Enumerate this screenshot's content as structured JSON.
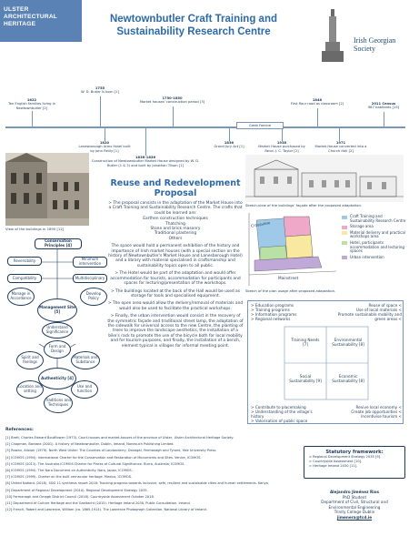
{
  "logo": {
    "lines": [
      "ULSTER",
      "ARCHITECTURAL",
      "HERITAGE"
    ]
  },
  "title": "Newtownbutler Craft Training and Sustainability Research Centre",
  "igs_logo": "Irish Georgian Society",
  "timeline": {
    "above": [
      {
        "year": "1622",
        "text": "Ten English families living in Newtownbutler [2]"
      },
      {
        "year": "1755",
        "text": "W. D. Butler is born [1]"
      },
      {
        "year": "1750-1850",
        "text": "Market houses' construction period [3]"
      },
      {
        "year": "1848",
        "text": "First flour road as classroom [2]"
      },
      {
        "year": "2011 Census",
        "text": "987 habitants [15]"
      }
    ],
    "below": [
      {
        "year": "1820",
        "text": "Lanesborough Arms Hotel built by John Reilly [1]"
      },
      {
        "year": "1836-1836",
        "text": "Construction of Newtownbutler Market House designed by W. D. Butler (1 & 3) and built by Jonathan Tilson [1]"
      },
      {
        "year": "1836",
        "text": "Grand Jury Act [1]"
      },
      {
        "year": "1938",
        "text": "Market House purchased by Revd. J. C. Taylor [2]"
      },
      {
        "year": "1971",
        "text": "Market House converted into a Church Hall [2]"
      }
    ],
    "famine": "Great Famine"
  },
  "reuse": {
    "title": "Reuse and Redevelopment Proposal",
    "intro": "> The proposal consists in the adaptation of the Market House into a Craft Training and Sustainability Research Centre. The crafts that could be learned are:",
    "crafts": [
      "Earthen construction techniques",
      "Thatching",
      "Stone and brick masonry",
      "Traditional plastering",
      "Others"
    ],
    "p2": "The space would hold a permanent exhibition of the history and importance of Irish market houses (with a special section on the history of Newtownbutler's Market House and Lanesborough Hotel) and a library with material specialised in craftsmanship and sustainability topics open to all public.",
    "p3": "> The Hotel would be part of the adaptation and would offer accommodation for tourists, accommodation for participants and spaces for lecturing/presentation of the workshops.",
    "p4": "> The buildings located at the back of the Hall would be used as storage for tools and specialised equipment.",
    "p5": "> The open area would allow the delivery/removal of materials and would also be used to facilitate the practical workshops.",
    "p6": "> Finally, the urban intervention would consist in the recovery of the symmetric façade and traditional street lamp, the adaptation of the sidewalk for universal access to the new Centre, the planting of trees to improve the landscape aesthetics, the installation of a bike's rack to promote the use of the bicycle both for local mobility and for tourism purposes, and finally, the installation of a bench, element typical in villages for informal meeting point."
  },
  "photo_caption": "View of the buildings in 1890 [12]",
  "sketch_caption": "Sketch-view of the buildings' façade after the proposed adaptation.",
  "plan_caption": "Sketch of the plan usage after proposed adaptation.",
  "plan_labels": {
    "street1": "Crossview",
    "street2": "Mainstreet"
  },
  "legend": [
    {
      "label": "Craft Training and Sustainability Research Centre",
      "color": "#9ec9e8"
    },
    {
      "label": "Storage area",
      "color": "#f0a8c8"
    },
    {
      "label": "Material delivery and practical workshops area",
      "color": "#f8e8a0"
    },
    {
      "label": "Hotel, participants accommodation and lecturing spaces",
      "color": "#b9e0a5"
    },
    {
      "label": "Urban intervention",
      "color": "#c0a8d8"
    }
  ],
  "diagram": {
    "conservation": "Conservation Principles [4]",
    "reversibility": "Reversibility",
    "minimum": "Minimum intervention",
    "compatibility": "Compatibility",
    "multidisciplinary": "Multidisciplinary",
    "manage": "Manage in Accordance",
    "develop": "Develop Policy",
    "management": "Management Site [5]",
    "understand": "Understand Significance",
    "form": "Form and Design",
    "spirit": "Spirit and feelings",
    "materials": "Materials and Substance",
    "authenticity": "Authenticity [4]",
    "location": "Location and setting",
    "use": "Use and function",
    "traditions": "Traditions and Techniques"
  },
  "sustainability": {
    "tl": [
      "> Education programs",
      "> Training programs",
      "> Information programs",
      "> Regional networks"
    ],
    "tr": [
      "Reuse of space <",
      "Use of local materials <",
      "Promote sustainable mobility and green areas <"
    ],
    "training": "Training Needs [7]",
    "env": "Environmental Sustainability [8]",
    "social": "Social Sustainability [9]",
    "econ": "Economic Sustainability [8]",
    "bl": [
      "> Contribute to placemaking",
      "> Understanding of the village's history",
      "> Valorisation of public space"
    ],
    "br": [
      "Revive local economy <",
      "Create job opportunities <",
      "Incentivise tourism <"
    ]
  },
  "references": {
    "title": "References:",
    "items": [
      "[1] Brett, Charles Edward Boutflower (1973). Court-houses and market-houses of the province of Ulster, Ulster Architectural Heritage Society.",
      "[2] Chapman, Barbara (2001). A history of Newtownbutler. Dublin, Ireland, Nonesuch Publishing Limited.",
      "[3] Rowan, Alistair (1979). North West Ulster: The Counties of Londonderry, Donegal, Fermanagh and Tyrone, Yale University Press.",
      "[4] ICOMOS (1994). International Charter for the Conservation and Restoration of Monuments and Sites. Venice, ICOMOS.",
      "[5] ICOMOS (2013). The Australia ICOMOS Charter for Places of Cultural Significance. Burra, Australia, ICOMOS.",
      "[6] ICOMOS (1994). The Nara Document on Authenticity. Nara, Japan, ICOMOS.",
      "[7] ICOMOS (1999). Charter on the built vernacular heritage. Mexico, ICOMOS.",
      "[8] United Nations (2018). SDG 11 synthesis report 2018: Tracking progress towards inclusive, safe, resilient and sustainable cities and human settlements. Kenya.",
      "[9] Department of Regional Development (2010). Regional Development Strategy 2035.",
      "[10] Fermanagh and Omagh District Council (2018). Countryside Assessment October 2018.",
      "[11] Department of Culture Heritage and the Gaeltacht (2015). Heritage Ireland 2030, Public Consultation. Ireland.",
      "[12] French, Robert and Lawrence, William (ca. 1865-1914). The Lawrence Photograph Collection. National Library of Ireland."
    ]
  },
  "statutory": {
    "title": "Statutory framework:",
    "items": [
      "> Regional Development Strategy 2035 [9].",
      "> Countryside Assessment [10].",
      "> Heritage Ireland 2030 [11]."
    ]
  },
  "author": [
    "Alejandro Jiménez Rios",
    "PhD Student",
    "Department of Civil, Structural and",
    "Environmental Engineering",
    "Trinity College Dublin",
    "jimenera@tcd.ie"
  ]
}
